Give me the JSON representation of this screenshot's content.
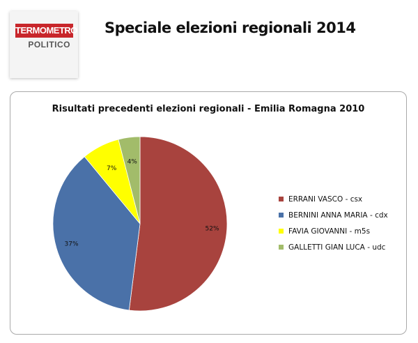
{
  "header": {
    "logo_line1": "TERMOMETRO",
    "logo_line2": "POLITICO",
    "title": "Speciale elezioni regionali 2014"
  },
  "chart_data": {
    "type": "pie",
    "title": "Risultati precedenti elezioni regionali - Emilia Romagna 2010",
    "slices": [
      {
        "label": "ERRANI VASCO - csx",
        "value": 52,
        "display": "52%",
        "color": "#a8433e"
      },
      {
        "label": "BERNINI ANNA MARIA - cdx",
        "value": 37,
        "display": "37%",
        "color": "#4a71a8"
      },
      {
        "label": "FAVIA GIOVANNI - m5s",
        "value": 7,
        "display": "7%",
        "color": "#ffff00"
      },
      {
        "label": "GALLETTI GIAN LUCA - udc",
        "value": 4,
        "display": "4%",
        "color": "#a2bc6a"
      }
    ],
    "legend_position": "right"
  }
}
